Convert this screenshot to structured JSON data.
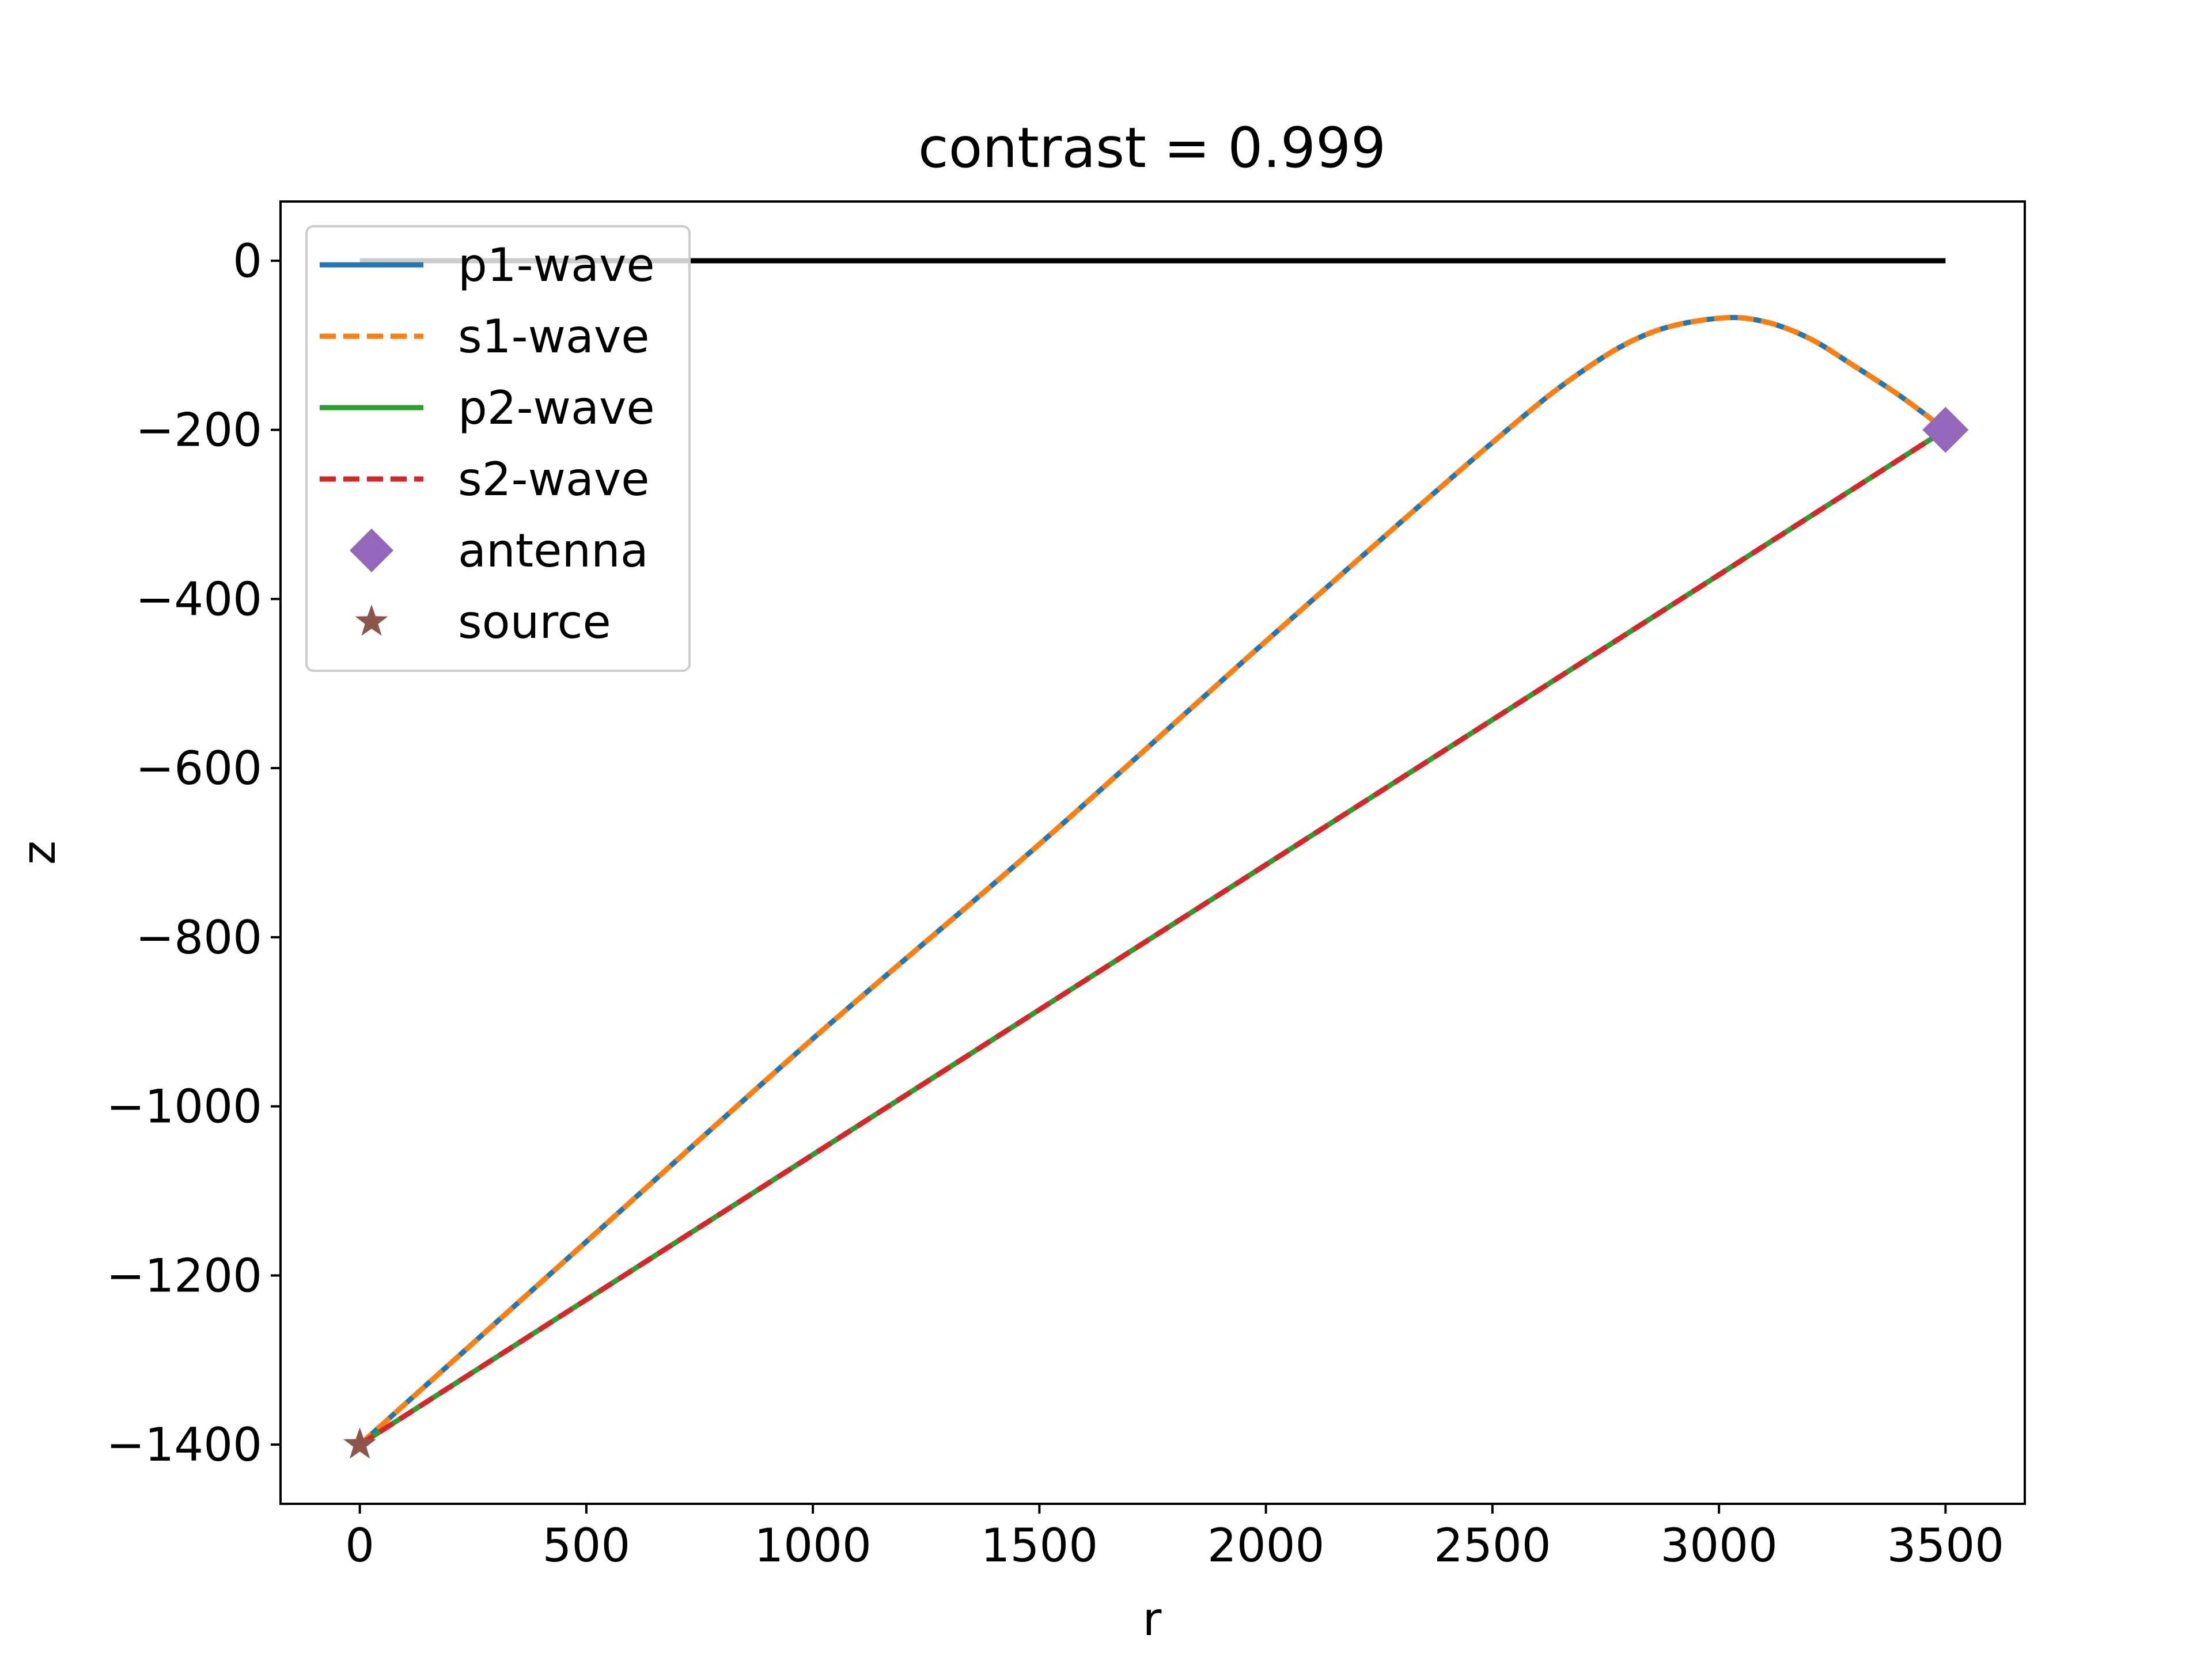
{
  "chart_data": {
    "type": "line",
    "title": "contrast = 0.999",
    "xlabel": "r",
    "ylabel": "z",
    "xlim": [
      -175,
      3675
    ],
    "ylim": [
      -1470,
      70
    ],
    "xticks": [
      0,
      500,
      1000,
      1500,
      2000,
      2500,
      3000,
      3500
    ],
    "yticks": [
      0,
      -200,
      -400,
      -600,
      -800,
      -1000,
      -1200,
      -1400
    ],
    "xtick_labels": [
      "0",
      "500",
      "1000",
      "1500",
      "2000",
      "2500",
      "3000",
      "3500"
    ],
    "ytick_labels": [
      "0",
      "−200",
      "−400",
      "−600",
      "−800",
      "−1000",
      "−1200",
      "−1400"
    ],
    "grid": false,
    "legend_position": "top-left",
    "surface_line": {
      "color": "#000000",
      "x": [
        0,
        3500
      ],
      "y": [
        0,
        0
      ]
    },
    "series": [
      {
        "name": "p1-wave",
        "style": "solid",
        "color": "#1f77b4",
        "x": [
          0,
          500,
          1000,
          1500,
          2000,
          2500,
          2700,
          2850,
          3000,
          3100,
          3200,
          3300,
          3400,
          3500
        ],
        "y": [
          -1400,
          -1160,
          -920,
          -690,
          -450,
          -215,
          -130,
          -85,
          -68,
          -72,
          -92,
          -125,
          -160,
          -200
        ]
      },
      {
        "name": "s1-wave",
        "style": "dashed",
        "color": "#ff7f0e",
        "x": [
          0,
          500,
          1000,
          1500,
          2000,
          2500,
          2700,
          2850,
          3000,
          3100,
          3200,
          3300,
          3400,
          3500
        ],
        "y": [
          -1400,
          -1160,
          -920,
          -690,
          -450,
          -215,
          -130,
          -85,
          -68,
          -72,
          -92,
          -125,
          -160,
          -200
        ]
      },
      {
        "name": "p2-wave",
        "style": "solid",
        "color": "#2ca02c",
        "x": [
          0,
          3500
        ],
        "y": [
          -1400,
          -200
        ]
      },
      {
        "name": "s2-wave",
        "style": "dashed",
        "color": "#d62728",
        "x": [
          0,
          3500
        ],
        "y": [
          -1400,
          -200
        ]
      }
    ],
    "markers": [
      {
        "name": "antenna",
        "shape": "diamond",
        "color": "#9467bd",
        "x": 3500,
        "y": -200
      },
      {
        "name": "source",
        "shape": "star",
        "color": "#8c564b",
        "x": 0,
        "y": -1400
      }
    ]
  }
}
